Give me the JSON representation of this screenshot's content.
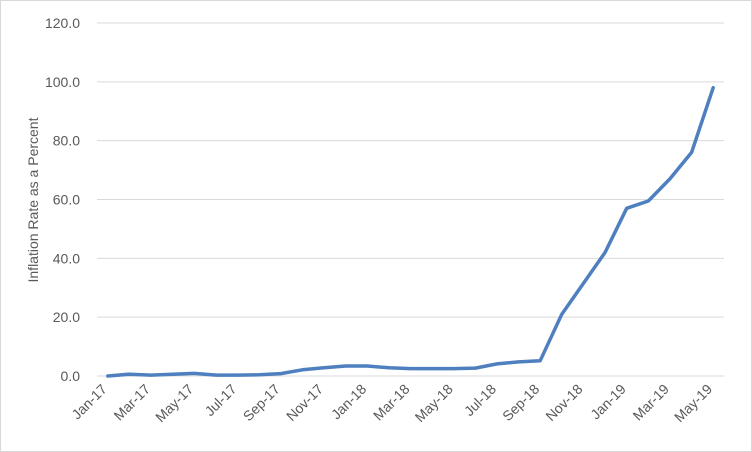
{
  "chart_data": {
    "type": "line",
    "y_label": "Inflation Rate as a Percent",
    "categories": [
      "Jan-17",
      null,
      "Mar-17",
      null,
      "May-17",
      null,
      "Jul-17",
      null,
      "Sep-17",
      null,
      "Nov-17",
      null,
      "Jan-18",
      null,
      "Mar-18",
      null,
      "May-18",
      null,
      "Jul-18",
      null,
      "Sep-18",
      null,
      "Nov-18",
      null,
      "Jan-19",
      null,
      "Mar-19",
      null,
      "May-19"
    ],
    "series": [
      {
        "color": "#4e7fbf",
        "values": [
          0.0,
          0.6,
          0.3,
          0.6,
          0.9,
          0.3,
          0.3,
          0.4,
          0.8,
          2.1,
          2.8,
          3.4,
          3.4,
          2.8,
          2.5,
          2.5,
          2.5,
          2.7,
          4.1,
          4.8,
          5.2,
          21.0,
          31.5,
          42.0,
          57.0,
          59.5,
          67.0,
          76.0,
          98.0
        ]
      }
    ],
    "ylim": [
      0,
      120
    ],
    "yticks": [
      {
        "value": 0,
        "label": "0.0"
      },
      {
        "value": 20,
        "label": "20.0"
      },
      {
        "value": 40,
        "label": "40.0"
      },
      {
        "value": 60,
        "label": "60.0"
      },
      {
        "value": 80,
        "label": "80.0"
      },
      {
        "value": 100,
        "label": "100.0"
      },
      {
        "value": 120,
        "label": "120.0"
      }
    ],
    "grid": true
  }
}
